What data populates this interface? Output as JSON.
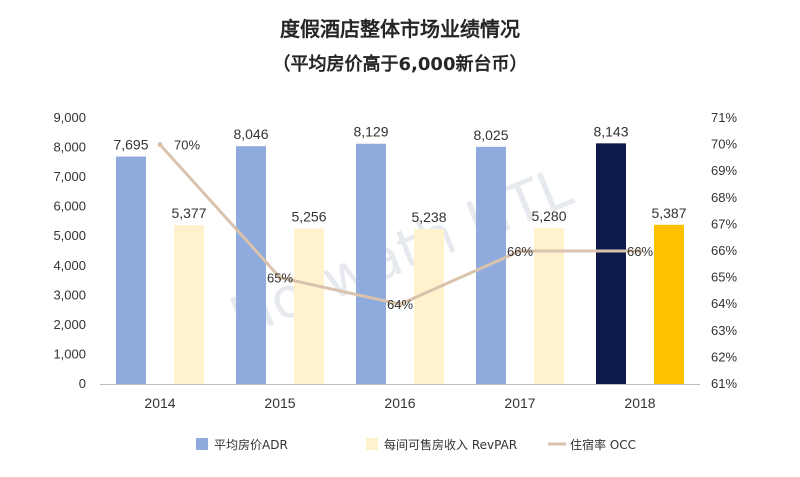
{
  "chart_data": {
    "type": "bar",
    "title": "度假酒店整体市场业绩情况",
    "subtitle": "（平均房价高于6,000新台币）",
    "categories": [
      "2014",
      "2015",
      "2016",
      "2017",
      "2018"
    ],
    "series": [
      {
        "name": "平均房价ADR",
        "kind": "bar",
        "axis": "left",
        "values": [
          7695,
          8046,
          8129,
          8025,
          8143
        ],
        "value_labels": [
          "7,695",
          "8,046",
          "8,129",
          "8,025",
          "8,143"
        ],
        "color": "#8faadc",
        "highlight_color": "#0d1b4b"
      },
      {
        "name": "每间可售房收入 RevPAR",
        "kind": "bar",
        "axis": "left",
        "values": [
          5377,
          5256,
          5238,
          5280,
          5387
        ],
        "value_labels": [
          "5,377",
          "5,256",
          "5,238",
          "5,280",
          "5,387"
        ],
        "color": "#fff2cc",
        "highlight_color": "#ffc000"
      },
      {
        "name": "住宿率 OCC",
        "kind": "line",
        "axis": "right",
        "values": [
          70,
          65,
          64,
          66,
          66
        ],
        "value_labels": [
          "70%",
          "65%",
          "64%",
          "66%",
          "66%"
        ],
        "color": "#d9c3ad"
      }
    ],
    "y_left": {
      "min": 0,
      "max": 9000,
      "ticks": [
        0,
        1000,
        2000,
        3000,
        4000,
        5000,
        6000,
        7000,
        8000,
        9000
      ],
      "tick_labels": [
        "0",
        "1,000",
        "2,000",
        "3,000",
        "4,000",
        "5,000",
        "6,000",
        "7,000",
        "8,000",
        "9,000"
      ]
    },
    "y_right": {
      "min": 61,
      "max": 71,
      "ticks": [
        61,
        62,
        63,
        64,
        65,
        66,
        67,
        68,
        69,
        70,
        71
      ],
      "tick_labels": [
        "61%",
        "62%",
        "63%",
        "64%",
        "65%",
        "66%",
        "67%",
        "68%",
        "69%",
        "70%",
        "71%"
      ]
    },
    "highlight_category_index": 4,
    "legend_position": "bottom",
    "grid": false
  },
  "watermark": "Horwath HTL"
}
